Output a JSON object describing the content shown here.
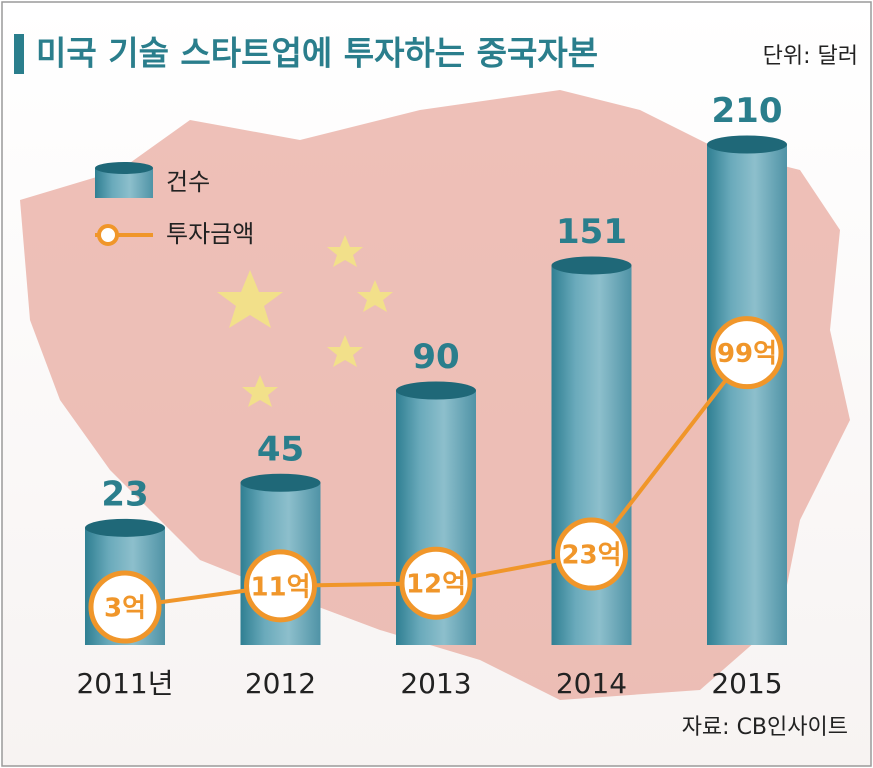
{
  "chart_data": {
    "type": "bar",
    "title": "미국 기술 스타트업에 투자하는 중국자본",
    "subtitle": "단위: 달러",
    "source": "자료: CB인사이트",
    "categories": [
      "2011년",
      "2012",
      "2013",
      "2014",
      "2015"
    ],
    "series": [
      {
        "name": "건수",
        "type": "bar",
        "color": "#5b9fb2",
        "values": [
          23,
          45,
          90,
          151,
          210
        ]
      },
      {
        "name": "투자금액",
        "type": "line",
        "color": "#f0962a",
        "values": [
          3,
          11,
          12,
          23,
          99
        ],
        "value_labels": [
          "3억",
          "11억",
          "12억",
          "23억",
          "99억"
        ]
      }
    ]
  }
}
